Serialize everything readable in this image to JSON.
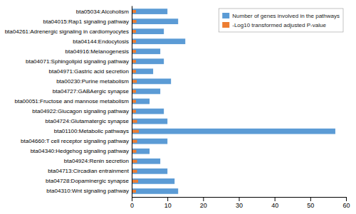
{
  "chart_data": {
    "type": "bar",
    "orientation": "horizontal",
    "categories": [
      "bta05034:Alcoholism",
      "bta04015:Rap1 signaling pathway",
      "bta04261:Adrenergic signaling in cardiomyocytes",
      "bta04144:Endocytosis",
      "bta04916:Melanogenesis",
      "bta04071:Sphingolipid signaling pathway",
      "bta04971:Gastric acid secretion",
      "bta00230:Purine metabolism",
      "bta04727:GABAergic synapse",
      "bta00051:Fructose and mannose metabolism",
      "bta04922:Glucagon signaling pathway",
      "bta04724:Glutamatergic synapse",
      "bta01100:Metabolic pathways",
      "bta04660:T cell receptor signaling pathway",
      "bta04340:Hedgehog signaling pathway",
      "bta04924:Renin secretion",
      "bta04713:Circadian entrainment",
      "bta04728:Dopaminergic synapse",
      "bta04310:Wnt signaling pathway"
    ],
    "series": [
      {
        "name": "Number of genes involved in the pathways",
        "color": "#5B9BD5",
        "values": [
          10,
          13,
          9,
          15,
          8,
          9,
          6,
          11,
          8,
          5,
          9,
          10,
          57,
          10,
          5,
          8,
          10,
          12,
          13
        ]
      },
      {
        "name": "-Log10 transformed adjusted P-value",
        "color": "#ED7D31",
        "values": [
          1.2,
          1.3,
          1.2,
          1.2,
          1.2,
          1.2,
          1.2,
          1.4,
          1.2,
          1.2,
          1.2,
          1.5,
          2.0,
          1.5,
          1.3,
          1.5,
          1.5,
          1.8,
          1.2
        ]
      }
    ],
    "xlim": [
      0,
      60
    ],
    "xticks": [
      0,
      10,
      20,
      30,
      40,
      50,
      60
    ],
    "grid": false,
    "legend": "upper right"
  }
}
